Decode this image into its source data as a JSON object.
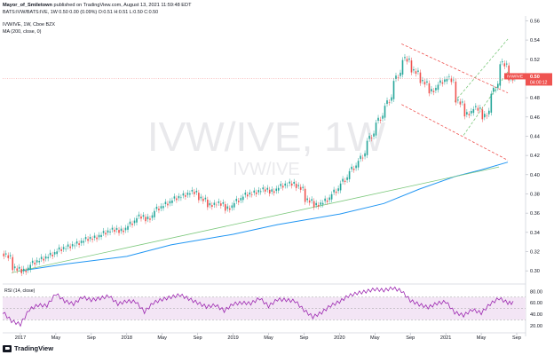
{
  "header": {
    "author": "Mayor_of_Smiletown",
    "published": "published on TradingView.com, August 13, 2021 11:59:48 EDT",
    "ohlc_line": "BATS:IVW/BATS:IVE, 1W  0.50 0.00 (0.09%) O:0.51 H:0.51 L:0.50 C:0.50"
  },
  "legend": {
    "symbol": "IVW/IVE, 1W, Cboe BZX",
    "ma": "MA (200, close, 0)",
    "rsi": "RSI (14, close)"
  },
  "watermark": {
    "big": "IVW/IVE, 1W",
    "small": "IVW/IVE"
  },
  "price_label": {
    "symbol": "IVW/IVE",
    "value": "0.50",
    "countdown": "04:00:12"
  },
  "brand": "TradingView",
  "colors": {
    "up": "#26a69a",
    "down": "#ef5350",
    "ma": "#2196f3",
    "trend": "#7ec97e",
    "channel": "#ef5350",
    "channel_up": "#7ec97e",
    "rsi": "#9c27b0",
    "rsi_band": "#f3e5f5"
  },
  "chart_data": {
    "type": "candlestick",
    "title": "IVW/IVE, 1W",
    "x_ticks": [
      "2017",
      "May",
      "Sep",
      "2018",
      "May",
      "Sep",
      "2019",
      "May",
      "Sep",
      "2020",
      "May",
      "Sep",
      "2021",
      "May",
      "Sep"
    ],
    "y_ticks": [
      "0.30",
      "0.32",
      "0.34",
      "0.36",
      "0.38",
      "0.40",
      "0.42",
      "0.44",
      "0.46",
      "0.48",
      "0.50",
      "0.52",
      "0.54",
      "0.56"
    ],
    "ylim": [
      0.29,
      0.565
    ],
    "rsi_ticks": [
      "80.00",
      "60.00",
      "40.00",
      "20.00"
    ],
    "rsi_ylim": [
      15,
      90
    ],
    "rsi_band": [
      30,
      70
    ],
    "price_series": [
      [
        "2016-11",
        0.318
      ],
      [
        "2016-12",
        0.303
      ],
      [
        "2017-01",
        0.299
      ],
      [
        "2017-02",
        0.308
      ],
      [
        "2017-03",
        0.312
      ],
      [
        "2017-04",
        0.316
      ],
      [
        "2017-05",
        0.322
      ],
      [
        "2017-06",
        0.325
      ],
      [
        "2017-07",
        0.328
      ],
      [
        "2017-08",
        0.333
      ],
      [
        "2017-09",
        0.334
      ],
      [
        "2017-10",
        0.339
      ],
      [
        "2017-11",
        0.343
      ],
      [
        "2017-12",
        0.341
      ],
      [
        "2018-01",
        0.348
      ],
      [
        "2018-02",
        0.357
      ],
      [
        "2018-03",
        0.353
      ],
      [
        "2018-04",
        0.364
      ],
      [
        "2018-05",
        0.369
      ],
      [
        "2018-06",
        0.375
      ],
      [
        "2018-07",
        0.378
      ],
      [
        "2018-08",
        0.383
      ],
      [
        "2018-09",
        0.376
      ],
      [
        "2018-10",
        0.368
      ],
      [
        "2018-11",
        0.371
      ],
      [
        "2018-12",
        0.364
      ],
      [
        "2019-01",
        0.372
      ],
      [
        "2019-02",
        0.379
      ],
      [
        "2019-03",
        0.381
      ],
      [
        "2019-04",
        0.385
      ],
      [
        "2019-05",
        0.382
      ],
      [
        "2019-06",
        0.388
      ],
      [
        "2019-07",
        0.391
      ],
      [
        "2019-08",
        0.389
      ],
      [
        "2019-09",
        0.374
      ],
      [
        "2019-10",
        0.368
      ],
      [
        "2019-11",
        0.372
      ],
      [
        "2019-12",
        0.381
      ],
      [
        "2020-01",
        0.392
      ],
      [
        "2020-02",
        0.405
      ],
      [
        "2020-03",
        0.415
      ],
      [
        "2020-04",
        0.436
      ],
      [
        "2020-05",
        0.455
      ],
      [
        "2020-06",
        0.472
      ],
      [
        "2020-07",
        0.498
      ],
      [
        "2020-08",
        0.522
      ],
      [
        "2020-09",
        0.509
      ],
      [
        "2020-10",
        0.498
      ],
      [
        "2020-11",
        0.486
      ],
      [
        "2020-12",
        0.495
      ],
      [
        "2021-01",
        0.503
      ],
      [
        "2021-02",
        0.478
      ],
      [
        "2021-03",
        0.462
      ],
      [
        "2021-04",
        0.471
      ],
      [
        "2021-05",
        0.458
      ],
      [
        "2021-06",
        0.484
      ],
      [
        "2021-07",
        0.518
      ],
      [
        "2021-08",
        0.5
      ]
    ],
    "ma_series": [
      [
        "2017-01",
        0.3
      ],
      [
        "2017-06",
        0.307
      ],
      [
        "2018-01",
        0.315
      ],
      [
        "2018-06",
        0.327
      ],
      [
        "2019-01",
        0.338
      ],
      [
        "2019-06",
        0.348
      ],
      [
        "2020-01",
        0.359
      ],
      [
        "2020-06",
        0.37
      ],
      [
        "2020-10",
        0.385
      ],
      [
        "2021-02",
        0.398
      ],
      [
        "2021-05",
        0.405
      ],
      [
        "2021-08",
        0.413
      ]
    ],
    "rsi_series": [
      [
        "2016-11",
        44
      ],
      [
        "2016-12",
        28
      ],
      [
        "2017-01",
        22
      ],
      [
        "2017-02",
        48
      ],
      [
        "2017-03",
        56
      ],
      [
        "2017-04",
        55
      ],
      [
        "2017-05",
        76
      ],
      [
        "2017-06",
        63
      ],
      [
        "2017-07",
        58
      ],
      [
        "2017-08",
        70
      ],
      [
        "2017-09",
        65
      ],
      [
        "2017-10",
        68
      ],
      [
        "2017-11",
        72
      ],
      [
        "2017-12",
        58
      ],
      [
        "2018-01",
        63
      ],
      [
        "2018-02",
        62
      ],
      [
        "2018-03",
        44
      ],
      [
        "2018-04",
        60
      ],
      [
        "2018-05",
        66
      ],
      [
        "2018-06",
        70
      ],
      [
        "2018-07",
        74
      ],
      [
        "2018-08",
        67
      ],
      [
        "2018-09",
        60
      ],
      [
        "2018-10",
        53
      ],
      [
        "2018-11",
        56
      ],
      [
        "2018-12",
        46
      ],
      [
        "2019-01",
        58
      ],
      [
        "2019-02",
        60
      ],
      [
        "2019-03",
        59
      ],
      [
        "2019-04",
        68
      ],
      [
        "2019-05",
        54
      ],
      [
        "2019-06",
        66
      ],
      [
        "2019-07",
        65
      ],
      [
        "2019-08",
        63
      ],
      [
        "2019-09",
        47
      ],
      [
        "2019-10",
        35
      ],
      [
        "2019-11",
        43
      ],
      [
        "2019-12",
        55
      ],
      [
        "2020-01",
        62
      ],
      [
        "2020-02",
        72
      ],
      [
        "2020-03",
        77
      ],
      [
        "2020-04",
        80
      ],
      [
        "2020-05",
        84
      ],
      [
        "2020-06",
        82
      ],
      [
        "2020-07",
        86
      ],
      [
        "2020-08",
        81
      ],
      [
        "2020-09",
        64
      ],
      [
        "2020-10",
        57
      ],
      [
        "2020-11",
        52
      ],
      [
        "2020-12",
        59
      ],
      [
        "2021-01",
        62
      ],
      [
        "2021-02",
        43
      ],
      [
        "2021-03",
        38
      ],
      [
        "2021-04",
        48
      ],
      [
        "2021-05",
        42
      ],
      [
        "2021-06",
        58
      ],
      [
        "2021-07",
        68
      ],
      [
        "2021-08",
        60
      ]
    ],
    "trendlines": [
      {
        "name": "rising-trendline",
        "from": [
          "2016-12",
          0.298
        ],
        "to": [
          "2021-07",
          0.408
        ]
      },
      {
        "name": "channel-top",
        "from": [
          "2020-08",
          0.536
        ],
        "to": [
          "2021-08",
          0.485
        ]
      },
      {
        "name": "channel-bottom",
        "from": [
          "2020-08",
          0.473
        ],
        "to": [
          "2021-08",
          0.415
        ]
      },
      {
        "name": "channel-up-top",
        "from": [
          "2021-02",
          0.476
        ],
        "to": [
          "2021-08",
          0.541
        ]
      },
      {
        "name": "channel-up-bottom",
        "from": [
          "2021-03",
          0.441
        ],
        "to": [
          "2021-08",
          0.507
        ]
      }
    ]
  }
}
